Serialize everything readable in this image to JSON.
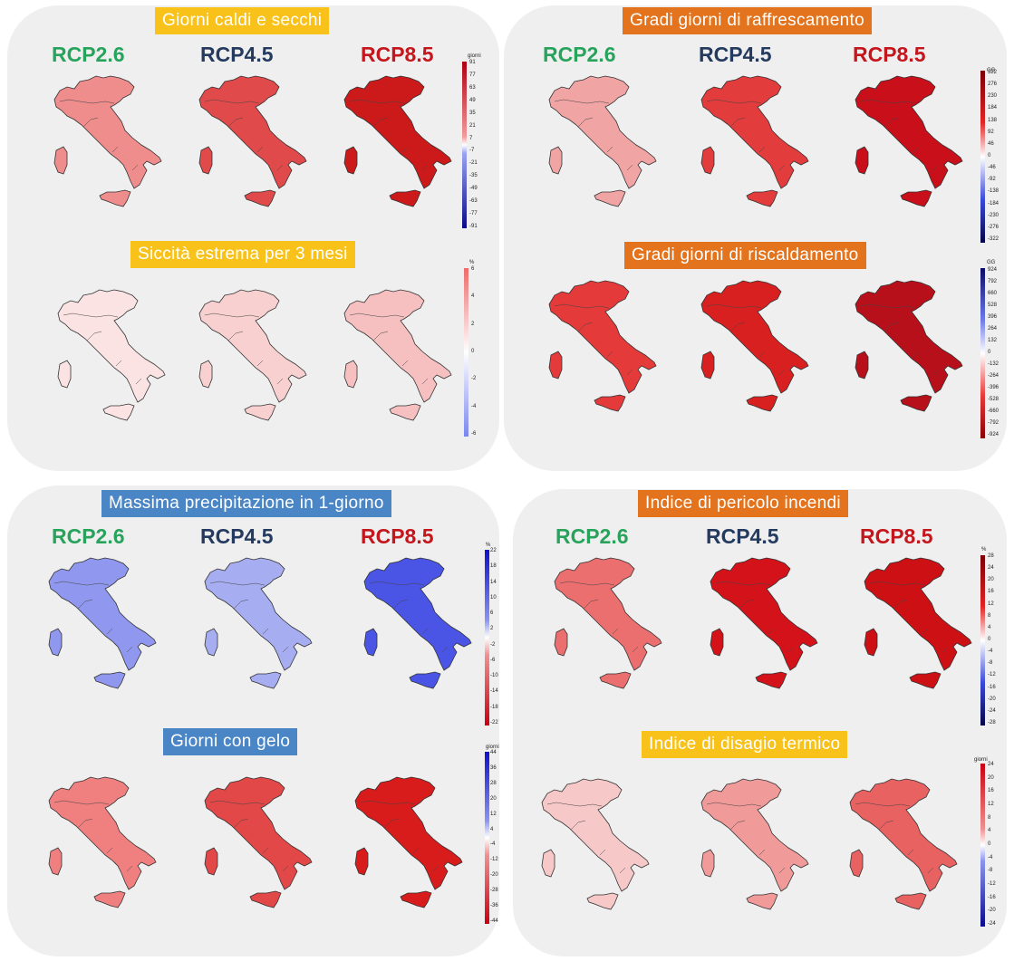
{
  "scenarios": {
    "s26": {
      "label": "RCP2.6",
      "color": "#27a35c"
    },
    "s45": {
      "label": "RCP4.5",
      "color": "#243a5e"
    },
    "s85": {
      "label": "RCP8.5",
      "color": "#c4161c"
    }
  },
  "panels": {
    "hot_dry_days": {
      "title": "Giorni caldi e secchi",
      "unit": "giorni",
      "scale_ticks": [
        "91",
        "77",
        "63",
        "49",
        "35",
        "21",
        "7",
        "-7",
        "-21",
        "-35",
        "-49",
        "-63",
        "-77",
        "-91"
      ],
      "fills": [
        "#ef8c8c",
        "#e04a4a",
        "#cc1a1a"
      ]
    },
    "extreme_drought": {
      "title": "Siccità estrema per 3 mesi",
      "unit": "%",
      "scale_ticks": [
        "6",
        "4",
        "2",
        "0",
        "-2",
        "-4",
        "-6"
      ],
      "fills": [
        "#fbe3e3",
        "#f9d0d0",
        "#f6c0c0"
      ]
    },
    "cooling_degree_days": {
      "title": "Gradi giorni di raffrescamento",
      "unit": "GG",
      "scale_ticks": [
        "322",
        "276",
        "230",
        "184",
        "138",
        "92",
        "46",
        "0",
        "-46",
        "-92",
        "-138",
        "-184",
        "-230",
        "-276",
        "-322"
      ],
      "fills": [
        "#f0a4a4",
        "#e23c3c",
        "#c80f1a"
      ]
    },
    "heating_degree_days": {
      "title": "Gradi giorni di riscaldamento",
      "unit": "GG",
      "scale_ticks": [
        "924",
        "792",
        "660",
        "528",
        "396",
        "264",
        "132",
        "0",
        "-132",
        "-264",
        "-396",
        "-528",
        "-660",
        "-792",
        "-924"
      ],
      "fills": [
        "#e53a3a",
        "#d82020",
        "#b8101a"
      ]
    },
    "max_daily_precip": {
      "title": "Massima precipitazione in 1-giorno",
      "unit": "%",
      "scale_ticks": [
        "22",
        "18",
        "14",
        "10",
        "6",
        "2",
        "-2",
        "-6",
        "-10",
        "-14",
        "-18",
        "-22"
      ],
      "fills": [
        "#8f98ee",
        "#a6adf0",
        "#4a55e6"
      ]
    },
    "fire_danger": {
      "title": "Indice  di pericolo incendi",
      "unit": "%",
      "scale_ticks": [
        "28",
        "24",
        "20",
        "16",
        "12",
        "8",
        "4",
        "0",
        "-4",
        "-8",
        "-12",
        "-16",
        "-20",
        "-24",
        "-28"
      ],
      "fills": [
        "#ec6f6f",
        "#d4121a",
        "#cc1014"
      ]
    },
    "frost_days": {
      "title": "Giorni con gelo",
      "unit": "giorni",
      "scale_ticks": [
        "44",
        "36",
        "28",
        "20",
        "12",
        "4",
        "-4",
        "-12",
        "-20",
        "-28",
        "-36",
        "-44"
      ],
      "fills": [
        "#f08080",
        "#e24848",
        "#d81c1c"
      ]
    },
    "heat_discomfort": {
      "title": "Indice di disagio termico",
      "unit": "giorni",
      "scale_ticks": [
        "24",
        "20",
        "16",
        "12",
        "8",
        "4",
        "0",
        "-4",
        "-8",
        "-12",
        "-16",
        "-20",
        "-24"
      ],
      "fills": [
        "#f7c8c8",
        "#f09a9a",
        "#e86262"
      ]
    }
  }
}
